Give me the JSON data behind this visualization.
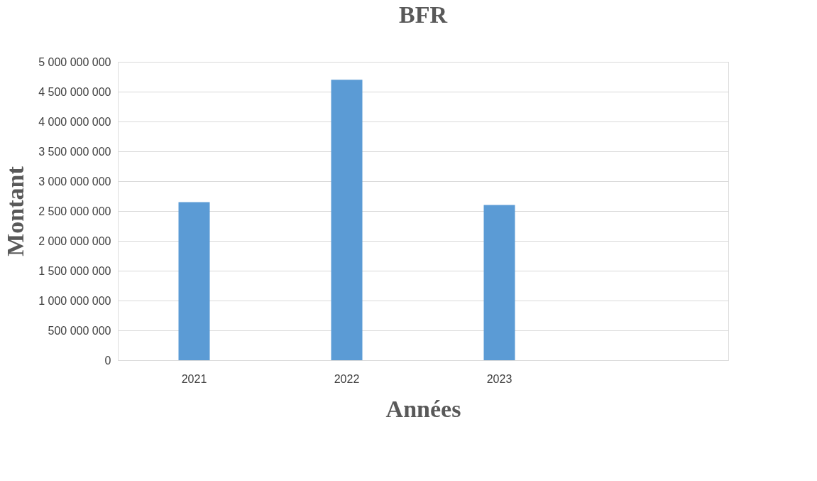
{
  "chart_data": {
    "type": "bar",
    "title": "BFR",
    "xlabel": "Années",
    "ylabel": "Montant",
    "categories": [
      "2021",
      "2022",
      "2023",
      null
    ],
    "series": [
      {
        "color": "#5b9bd5",
        "values": [
          2650000000,
          4700000000,
          2600000000,
          null
        ]
      }
    ],
    "ylim": [
      0,
      5000000000
    ],
    "yticks": [
      {
        "value": 0,
        "label": "0"
      },
      {
        "value": 500000000,
        "label": "500 000 000"
      },
      {
        "value": 1000000000,
        "label": "1 000 000 000"
      },
      {
        "value": 1500000000,
        "label": "1 500 000 000"
      },
      {
        "value": 2000000000,
        "label": "2 000 000 000"
      },
      {
        "value": 2500000000,
        "label": "2 500 000 000"
      },
      {
        "value": 3000000000,
        "label": "3 000 000 000"
      },
      {
        "value": 3500000000,
        "label": "3 500 000 000"
      },
      {
        "value": 4000000000,
        "label": "4 000 000 000"
      },
      {
        "value": 4500000000,
        "label": "4 500 000 000"
      },
      {
        "value": 5000000000,
        "label": "5 000 000 000"
      }
    ],
    "grid": "y",
    "legend": false
  }
}
